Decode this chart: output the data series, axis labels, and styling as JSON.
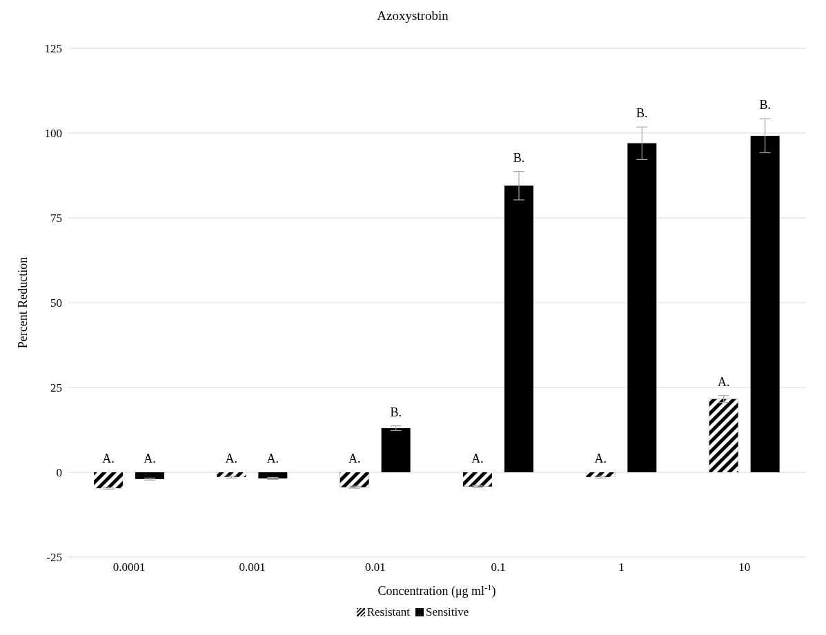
{
  "chart_data": {
    "type": "bar",
    "title": "Azoxystrobin",
    "xlabel": "Concentration (μg ml$^{-1}$)",
    "ylabel": "Percent Reduction",
    "categories": [
      "0.0001",
      "0.001",
      "0.01",
      "0.1",
      "1",
      "10"
    ],
    "series": [
      {
        "name": "Resistant",
        "color": "#000000",
        "values": [
          -4.7,
          -1.4,
          -4.4,
          -4.2,
          -1.4,
          21.6
        ],
        "errors": [
          0.3,
          0.3,
          0.3,
          0.3,
          0.3,
          1
        ],
        "value_labels": [
          "A.",
          "A.",
          "A.",
          "A.",
          "A.",
          "A."
        ]
      },
      {
        "name": "Sensitive",
        "color": "#000000",
        "values": [
          -2,
          -1.8,
          13,
          84.5,
          97,
          99.2
        ],
        "errors": [
          0.3,
          0.3,
          0.7,
          4.2,
          4.8,
          5
        ],
        "value_labels": [
          "A.",
          "A.",
          "B.",
          "B.",
          "B.",
          "B."
        ]
      }
    ],
    "ylim": [
      -25,
      125
    ],
    "yticks": [
      -25,
      0,
      25,
      50,
      75,
      100,
      125
    ],
    "grid": "y",
    "legend": "bottom"
  }
}
